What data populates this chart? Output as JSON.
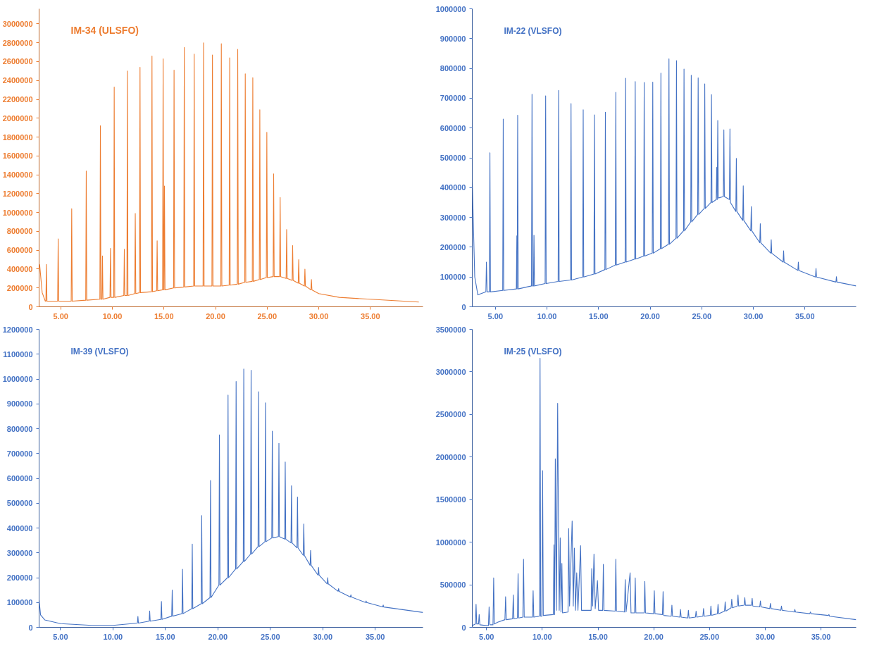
{
  "chart_data": [
    {
      "type": "line",
      "title": "IM-34 (ULSFO)",
      "xlim": [
        2.9,
        40.1
      ],
      "ylim": [
        0,
        3160000
      ],
      "xticks": [
        {
          "value": 5,
          "label": "5.00"
        },
        {
          "value": 10,
          "label": "10.00"
        },
        {
          "value": 15,
          "label": "15.00"
        },
        {
          "value": 20,
          "label": "20.00"
        },
        {
          "value": 25,
          "label": "25.00"
        },
        {
          "value": 30,
          "label": "30.00"
        },
        {
          "value": 35,
          "label": "35.00"
        }
      ],
      "yticks": [
        0,
        200000,
        400000,
        600000,
        800000,
        1000000,
        1200000,
        1400000,
        1600000,
        1800000,
        2000000,
        2200000,
        2400000,
        2600000,
        2800000,
        3000000
      ],
      "grid": false,
      "marker": "none",
      "line_style": "solid",
      "series": [
        {
          "color": "#ed7d31",
          "x": [
            2.95,
            3.2,
            3.5,
            3.56,
            3.61,
            3.66,
            4.7,
            4.75,
            4.8,
            6.01,
            6.06,
            6.11,
            7.42,
            7.47,
            7.52,
            8.79,
            8.84,
            8.89,
            8.99,
            9.04,
            9.09,
            9.77,
            9.82,
            9.87,
            10.13,
            10.18,
            10.23,
            11.11,
            11.16,
            11.21,
            11.41,
            11.46,
            11.51,
            12.17,
            12.22,
            12.27,
            12.63,
            12.68,
            12.73,
            13.79,
            13.84,
            13.89,
            14.29,
            14.34,
            14.39,
            14.87,
            14.92,
            14.97,
            15.0,
            15.05,
            15.1,
            15.93,
            15.98,
            16.03,
            16.92,
            16.97,
            17.02,
            17.88,
            17.93,
            17.98,
            18.79,
            18.84,
            18.89,
            19.65,
            19.7,
            19.75,
            20.51,
            20.56,
            20.61,
            21.32,
            21.37,
            21.42,
            22.1,
            22.15,
            22.2,
            22.83,
            22.88,
            22.93,
            23.56,
            23.61,
            23.66,
            24.24,
            24.29,
            24.34,
            24.92,
            24.97,
            25.02,
            25.58,
            25.63,
            25.68,
            26.21,
            26.26,
            26.31,
            26.84,
            26.89,
            26.94,
            27.42,
            27.47,
            27.52,
            28.01,
            28.06,
            28.11,
            28.61,
            28.66,
            28.71,
            29.24,
            29.29,
            29.34,
            30.0,
            32.0,
            35.0,
            39.7
          ],
          "values": [
            450000,
            150000,
            60000,
            60000,
            450000,
            60000,
            60000,
            720000,
            60000,
            60000,
            1040000,
            60000,
            70000,
            1440000,
            70000,
            80000,
            1920000,
            80000,
            80000,
            540000,
            80000,
            100000,
            620000,
            100000,
            100000,
            2330000,
            100000,
            120000,
            610000,
            120000,
            120000,
            2500000,
            120000,
            140000,
            990000,
            140000,
            150000,
            2540000,
            150000,
            160000,
            2660000,
            160000,
            170000,
            700000,
            170000,
            180000,
            2630000,
            180000,
            180000,
            1280000,
            180000,
            200000,
            2510000,
            200000,
            210000,
            2750000,
            210000,
            220000,
            2680000,
            220000,
            220000,
            2800000,
            220000,
            220000,
            2670000,
            220000,
            220000,
            2790000,
            220000,
            230000,
            2640000,
            230000,
            240000,
            2730000,
            240000,
            260000,
            2470000,
            260000,
            270000,
            2430000,
            270000,
            290000,
            2090000,
            290000,
            310000,
            1850000,
            310000,
            320000,
            1410000,
            320000,
            320000,
            1160000,
            320000,
            300000,
            820000,
            300000,
            280000,
            650000,
            280000,
            250000,
            500000,
            250000,
            220000,
            400000,
            220000,
            180000,
            290000,
            180000,
            140000,
            100000,
            80000,
            50000
          ]
        }
      ]
    },
    {
      "type": "line",
      "title": "IM-22 (VLSFO)",
      "xlim": [
        2.76,
        39.96
      ],
      "ylim": [
        0,
        1000000
      ],
      "xticks": [
        {
          "value": 5,
          "label": "5.00"
        },
        {
          "value": 10,
          "label": "10.00"
        },
        {
          "value": 15,
          "label": "15.00"
        },
        {
          "value": 20,
          "label": "20.00"
        },
        {
          "value": 25,
          "label": "25.00"
        },
        {
          "value": 30,
          "label": "30.00"
        },
        {
          "value": 35,
          "label": "35.00"
        }
      ],
      "yticks": [
        0,
        100000,
        200000,
        300000,
        400000,
        500000,
        600000,
        700000,
        800000,
        900000,
        1000000
      ],
      "grid": false,
      "marker": "none",
      "line_style": "solid",
      "series": [
        {
          "color": "#4472c4",
          "x": [
            2.76,
            3.0,
            3.3,
            4.08,
            4.13,
            4.2,
            4.42,
            4.47,
            4.52,
            5.71,
            5.76,
            5.81,
            7.03,
            7.08,
            7.11,
            7.16,
            7.21,
            8.5,
            8.55,
            8.6,
            8.69,
            8.74,
            8.79,
            9.82,
            9.87,
            9.92,
            11.08,
            11.13,
            11.18,
            12.28,
            12.33,
            12.38,
            13.46,
            13.51,
            13.56,
            14.55,
            14.6,
            14.65,
            15.61,
            15.66,
            15.71,
            16.62,
            16.67,
            16.72,
            17.57,
            17.62,
            17.67,
            18.5,
            18.55,
            18.6,
            19.37,
            19.42,
            19.47,
            20.2,
            20.25,
            20.3,
            20.99,
            21.04,
            21.09,
            21.77,
            21.82,
            21.87,
            22.5,
            22.55,
            22.6,
            23.23,
            23.28,
            23.33,
            23.93,
            23.98,
            24.03,
            24.6,
            24.65,
            24.7,
            25.24,
            25.29,
            25.34,
            25.89,
            25.94,
            25.99,
            26.4,
            26.45,
            26.5,
            26.55,
            26.6,
            27.09,
            27.14,
            27.19,
            27.68,
            27.73,
            27.78,
            28.3,
            28.35,
            28.4,
            28.97,
            29.02,
            29.07,
            29.75,
            29.8,
            29.85,
            30.62,
            30.67,
            30.72,
            31.68,
            31.73,
            31.78,
            32.88,
            32.93,
            32.98,
            34.31,
            34.36,
            34.41,
            36.02,
            36.07,
            36.12,
            38.0,
            38.05,
            38.1,
            39.96
          ],
          "values": [
            420000,
            100000,
            40000,
            50000,
            150000,
            50000,
            50000,
            517000,
            50000,
            55000,
            630000,
            55000,
            60000,
            238000,
            60000,
            643000,
            60000,
            70000,
            713000,
            70000,
            70000,
            240000,
            70000,
            78000,
            708000,
            78000,
            85000,
            726000,
            85000,
            90000,
            682000,
            90000,
            100000,
            661000,
            100000,
            110000,
            644000,
            110000,
            125000,
            653000,
            125000,
            140000,
            720000,
            140000,
            150000,
            767000,
            150000,
            160000,
            756000,
            160000,
            170000,
            753000,
            170000,
            180000,
            754000,
            180000,
            195000,
            784000,
            195000,
            210000,
            832000,
            210000,
            230000,
            826000,
            230000,
            255000,
            798000,
            255000,
            285000,
            777000,
            285000,
            310000,
            768000,
            310000,
            330000,
            748000,
            330000,
            350000,
            712000,
            350000,
            360000,
            468000,
            360000,
            625000,
            365000,
            370000,
            594000,
            370000,
            360000,
            597000,
            350000,
            320000,
            498000,
            320000,
            290000,
            406000,
            290000,
            255000,
            336000,
            255000,
            215000,
            279000,
            215000,
            180000,
            225000,
            180000,
            150000,
            188000,
            150000,
            122000,
            150000,
            122000,
            100000,
            129000,
            100000,
            83000,
            101000,
            83000,
            70000
          ]
        }
      ]
    },
    {
      "type": "line",
      "title": "IM-39 (VLSFO)",
      "xlim": [
        2.96,
        39.55
      ],
      "ylim": [
        0,
        1200000
      ],
      "xticks": [
        {
          "value": 5,
          "label": "5.00"
        },
        {
          "value": 10,
          "label": "10.00"
        },
        {
          "value": 15,
          "label": "15.00"
        },
        {
          "value": 20,
          "label": "20.00"
        },
        {
          "value": 25,
          "label": "25.00"
        },
        {
          "value": 30,
          "label": "30.00"
        },
        {
          "value": 35,
          "label": "35.00"
        }
      ],
      "yticks": [
        0,
        100000,
        200000,
        300000,
        400000,
        500000,
        600000,
        700000,
        800000,
        900000,
        1000000,
        1100000,
        1200000
      ],
      "grid": false,
      "marker": "none",
      "line_style": "solid",
      "series": [
        {
          "color": "#4472c4",
          "x": [
            2.96,
            3.1,
            3.5,
            5,
            8,
            10,
            12.33,
            12.38,
            12.43,
            13.45,
            13.5,
            13.55,
            14.57,
            14.62,
            14.67,
            15.6,
            15.65,
            15.7,
            16.58,
            16.63,
            16.68,
            17.51,
            17.56,
            17.61,
            18.41,
            18.46,
            18.51,
            19.25,
            19.3,
            19.35,
            20.1,
            20.15,
            20.2,
            20.92,
            20.97,
            21.02,
            21.69,
            21.74,
            21.79,
            22.42,
            22.47,
            22.52,
            23.12,
            23.17,
            23.22,
            23.83,
            23.88,
            23.93,
            24.49,
            24.54,
            24.59,
            25.14,
            25.19,
            25.24,
            25.77,
            25.82,
            25.87,
            26.37,
            26.42,
            26.47,
            26.97,
            27.02,
            27.07,
            27.54,
            27.59,
            27.64,
            28.14,
            28.19,
            28.24,
            28.79,
            28.84,
            28.89,
            29.55,
            29.6,
            29.65,
            30.42,
            30.47,
            30.52,
            31.46,
            31.51,
            31.56,
            32.63,
            32.68,
            32.73,
            34.08,
            34.13,
            34.18,
            35.71,
            35.76,
            35.81,
            39.55
          ],
          "values": [
            110000,
            50000,
            30000,
            15000,
            8000,
            8000,
            17000,
            44000,
            17000,
            25000,
            66000,
            25000,
            32000,
            104000,
            32000,
            45000,
            150000,
            45000,
            55000,
            234000,
            55000,
            75000,
            335000,
            75000,
            95000,
            450000,
            95000,
            120000,
            591000,
            120000,
            170000,
            775000,
            170000,
            200000,
            935000,
            200000,
            235000,
            990000,
            235000,
            265000,
            1040000,
            265000,
            295000,
            1035000,
            295000,
            325000,
            949000,
            325000,
            345000,
            904000,
            345000,
            360000,
            790000,
            360000,
            365000,
            741000,
            365000,
            355000,
            666000,
            355000,
            340000,
            570000,
            340000,
            320000,
            525000,
            320000,
            290000,
            416000,
            290000,
            250000,
            310000,
            250000,
            210000,
            241000,
            210000,
            175000,
            200000,
            175000,
            145000,
            156000,
            145000,
            122000,
            131000,
            122000,
            100000,
            106000,
            100000,
            82000,
            90000,
            82000,
            60000
          ]
        }
      ]
    },
    {
      "type": "line",
      "title": "IM-25 (VLSFO)",
      "xlim": [
        3.72,
        38.16
      ],
      "ylim": [
        0,
        3500000
      ],
      "xticks": [
        {
          "value": 5,
          "label": "5.00"
        },
        {
          "value": 10,
          "label": "10.00"
        },
        {
          "value": 15,
          "label": "15.00"
        },
        {
          "value": 20,
          "label": "20.00"
        },
        {
          "value": 25,
          "label": "25.00"
        },
        {
          "value": 30,
          "label": "30.00"
        },
        {
          "value": 35,
          "label": "35.00"
        }
      ],
      "yticks": [
        0,
        500000,
        1000000,
        1500000,
        2000000,
        2500000,
        3000000,
        3500000
      ],
      "grid": false,
      "marker": "none",
      "line_style": "solid",
      "series": [
        {
          "color": "#4472c4",
          "x": [
            3.72,
            4.0,
            4.06,
            4.12,
            4.28,
            4.34,
            4.4,
            5.0,
            5.17,
            5.23,
            5.3,
            5.58,
            5.64,
            5.7,
            6.0,
            6.65,
            6.71,
            6.77,
            7.34,
            7.4,
            7.46,
            7.77,
            7.83,
            7.89,
            8.26,
            8.32,
            8.38,
            9.12,
            9.18,
            9.24,
            9.74,
            9.8,
            9.86,
            9.97,
            10.03,
            10.09,
            10.99,
            11.05,
            11.11,
            11.17,
            11.27,
            11.38,
            11.43,
            11.52,
            11.61,
            11.68,
            11.76,
            11.82,
            12.31,
            12.37,
            12.45,
            12.68,
            12.78,
            12.88,
            12.98,
            13.09,
            13.2,
            13.44,
            13.52,
            14.38,
            14.44,
            14.52,
            14.64,
            14.75,
            14.95,
            15.05,
            15.42,
            15.48,
            15.54,
            16.54,
            16.6,
            16.66,
            17.38,
            17.44,
            17.52,
            17.88,
            17.96,
            18.28,
            18.34,
            18.4,
            19.14,
            19.2,
            19.26,
            19.99,
            20.05,
            20.11,
            20.78,
            20.84,
            20.9,
            21.57,
            21.63,
            21.69,
            22.34,
            22.4,
            22.46,
            23.05,
            23.11,
            23.17,
            23.74,
            23.8,
            23.86,
            24.41,
            24.47,
            24.53,
            25.07,
            25.13,
            25.19,
            25.71,
            25.77,
            25.83,
            26.35,
            26.41,
            26.47,
            26.94,
            27.0,
            27.06,
            27.5,
            27.56,
            27.62,
            28.11,
            28.17,
            28.23,
            28.77,
            28.83,
            28.89,
            29.51,
            29.57,
            29.63,
            30.41,
            30.47,
            30.53,
            31.4,
            31.46,
            31.52,
            32.6,
            32.66,
            32.72,
            34.0,
            34.06,
            34.12,
            35.66,
            35.72,
            35.78,
            38.16
          ],
          "values": [
            20000,
            40000,
            270000,
            40000,
            40000,
            150000,
            30000,
            20000,
            20000,
            240000,
            30000,
            30000,
            580000,
            40000,
            60000,
            90000,
            360000,
            90000,
            100000,
            380000,
            100000,
            110000,
            630000,
            110000,
            120000,
            800000,
            120000,
            120000,
            430000,
            120000,
            130000,
            3160000,
            130000,
            130000,
            1840000,
            140000,
            150000,
            970000,
            150000,
            1980000,
            200000,
            2630000,
            1660000,
            200000,
            1050000,
            180000,
            750000,
            170000,
            180000,
            1160000,
            250000,
            1250000,
            250000,
            930000,
            200000,
            640000,
            200000,
            960000,
            200000,
            200000,
            690000,
            250000,
            860000,
            220000,
            550000,
            200000,
            200000,
            740000,
            200000,
            190000,
            800000,
            190000,
            180000,
            560000,
            180000,
            640000,
            170000,
            170000,
            580000,
            170000,
            170000,
            540000,
            170000,
            160000,
            430000,
            160000,
            150000,
            420000,
            140000,
            130000,
            260000,
            130000,
            120000,
            210000,
            120000,
            110000,
            200000,
            110000,
            120000,
            190000,
            120000,
            130000,
            220000,
            130000,
            140000,
            250000,
            140000,
            160000,
            270000,
            160000,
            190000,
            300000,
            190000,
            230000,
            330000,
            230000,
            250000,
            380000,
            250000,
            260000,
            350000,
            260000,
            260000,
            340000,
            250000,
            240000,
            310000,
            240000,
            220000,
            280000,
            220000,
            200000,
            250000,
            200000,
            180000,
            210000,
            180000,
            160000,
            180000,
            160000,
            140000,
            150000,
            130000,
            90000
          ]
        }
      ]
    }
  ]
}
